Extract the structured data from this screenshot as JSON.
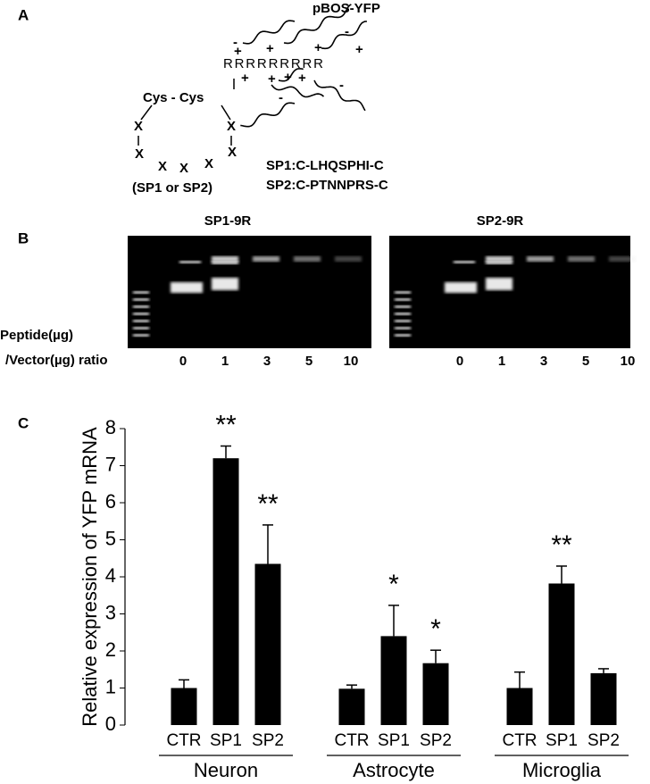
{
  "panel_a": {
    "label": "A",
    "vector": "pBOS-YFP",
    "arginines": "RRRRRRRRR",
    "cys": "Cys - Cys",
    "charges": [
      "-",
      "+",
      "+",
      "+",
      "-",
      "+",
      "+",
      "+",
      "+",
      "+",
      "-",
      "-"
    ],
    "ring": [
      "X",
      "X",
      "X",
      "X",
      "X",
      "X",
      "X"
    ],
    "ring_note": "(SP1 or SP2)",
    "sequences": [
      "SP1:C-LHQSPHI-C",
      "SP2:C-PTNNPRS-C"
    ]
  },
  "panel_b": {
    "label": "B",
    "gels": [
      {
        "title": "SP1-9R",
        "lanes": [
          "0",
          "1",
          "3",
          "5",
          "10"
        ]
      },
      {
        "title": "SP2-9R",
        "lanes": [
          "0",
          "1",
          "3",
          "5",
          "10"
        ]
      }
    ],
    "ratio_label": [
      "Peptide(µg)",
      "/Vector(µg) ratio"
    ]
  },
  "panel_c": {
    "label": "C"
  },
  "chart_data": {
    "type": "bar",
    "y_label": "Relative expression of YFP mRNA",
    "ylim": [
      0,
      8
    ],
    "yticks": [
      0,
      1,
      2,
      3,
      4,
      5,
      6,
      7,
      8
    ],
    "color": "#000000",
    "groups": [
      {
        "name": "Neuron",
        "categories": [
          "CTR",
          "SP1",
          "SP2"
        ],
        "values": [
          1.0,
          7.2,
          4.35
        ],
        "errors": [
          0.22,
          0.33,
          1.05
        ],
        "labels": [
          null,
          "**",
          "**"
        ]
      },
      {
        "name": "Astrocyte",
        "categories": [
          "CTR",
          "SP1",
          "SP2"
        ],
        "values": [
          0.98,
          2.4,
          1.67
        ],
        "errors": [
          0.1,
          0.83,
          0.35
        ],
        "labels": [
          null,
          "*",
          "*"
        ]
      },
      {
        "name": "Microglia",
        "categories": [
          "CTR",
          "SP1",
          "SP2"
        ],
        "values": [
          1.0,
          3.82,
          1.4
        ],
        "errors": [
          0.43,
          0.47,
          0.12
        ],
        "labels": [
          null,
          "**",
          null
        ]
      }
    ]
  }
}
